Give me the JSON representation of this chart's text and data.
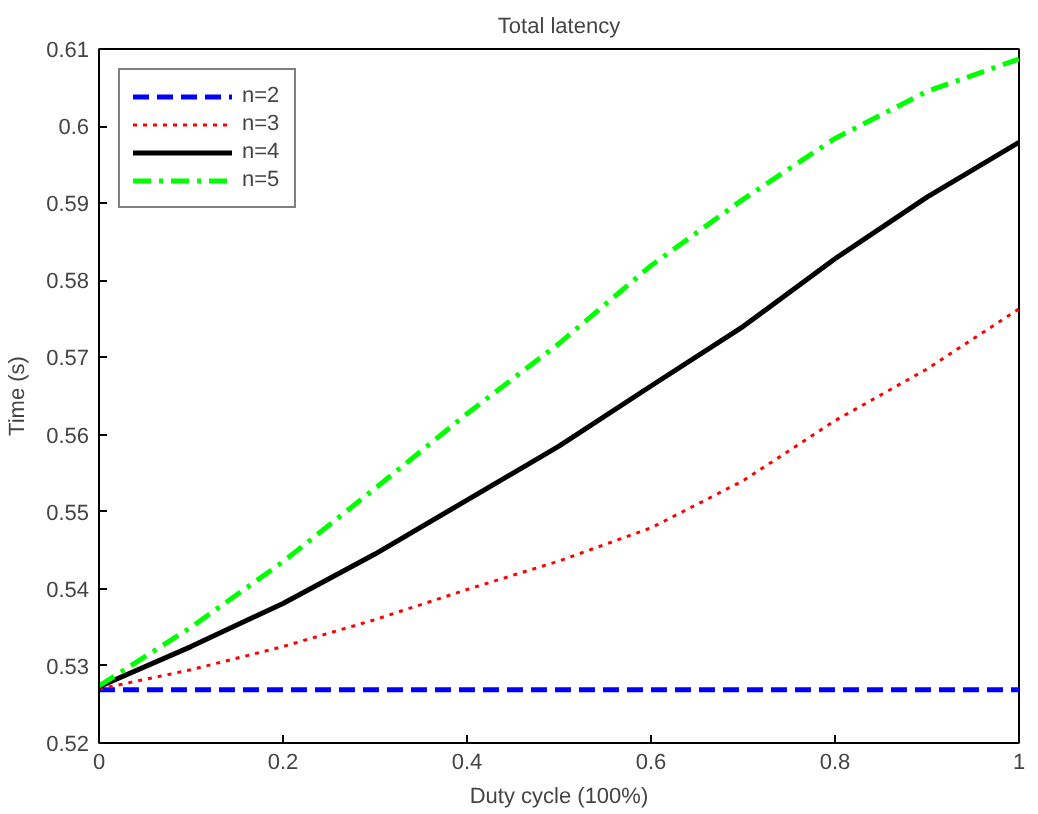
{
  "chart_data": {
    "type": "line",
    "title": "Total latency",
    "xlabel": "Duty cycle (100%)",
    "ylabel": "Time (s)",
    "x": [
      0,
      0.1,
      0.2,
      0.3,
      0.4,
      0.5,
      0.6,
      0.7,
      0.8,
      0.9,
      1
    ],
    "series": [
      {
        "name": "n=2",
        "color": "#0000ff",
        "line_style": "dashed",
        "values": [
          0.5269,
          0.5269,
          0.5269,
          0.5269,
          0.5269,
          0.5269,
          0.5269,
          0.5269,
          0.5269,
          0.5269,
          0.5269
        ]
      },
      {
        "name": "n=3",
        "color": "#ff0000",
        "line_style": "dotted",
        "values": [
          0.527,
          0.5295,
          0.5325,
          0.536,
          0.5399,
          0.5436,
          0.5479,
          0.554,
          0.5618,
          0.5685,
          0.5763
        ]
      },
      {
        "name": "n=4",
        "color": "#000000",
        "line_style": "solid",
        "values": [
          0.5273,
          0.5325,
          0.5381,
          0.5445,
          0.5515,
          0.5585,
          0.5663,
          0.574,
          0.5828,
          0.5908,
          0.5979
        ]
      },
      {
        "name": "n=5",
        "color": "#00ff00",
        "line_style": "dashdot",
        "values": [
          0.5274,
          0.535,
          0.5435,
          0.553,
          0.5627,
          0.5718,
          0.5819,
          0.5905,
          0.5984,
          0.6045,
          0.6087
        ]
      }
    ],
    "xlim": [
      0,
      1
    ],
    "ylim": [
      0.52,
      0.61
    ],
    "xticks": [
      0,
      0.2,
      0.4,
      0.6,
      0.8,
      1
    ],
    "yticks": [
      0.52,
      0.53,
      0.54,
      0.55,
      0.56,
      0.57,
      0.58,
      0.59,
      0.6,
      0.61
    ],
    "legend": "top left",
    "grid": false
  }
}
